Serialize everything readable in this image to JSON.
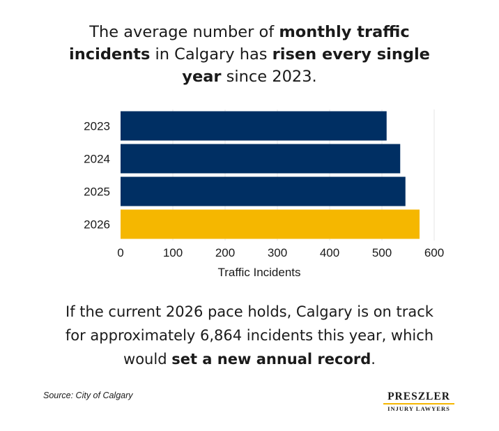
{
  "headline": {
    "p1": "The average number of ",
    "b1": "monthly traffic incidents",
    "p2": " in Calgary has ",
    "b2": "risen every single year",
    "p3": " since 2023."
  },
  "chart_data": {
    "type": "bar",
    "orientation": "horizontal",
    "categories": [
      "2023",
      "2024",
      "2025",
      "2026"
    ],
    "values": [
      509,
      535,
      545,
      572
    ],
    "xlabel": "Traffic Incidents",
    "ylabel": "",
    "xlim": [
      0,
      600
    ],
    "xticks": [
      0,
      100,
      200,
      300,
      400,
      500,
      600
    ],
    "grid": true,
    "colors": [
      "#002f63",
      "#002f63",
      "#002f63",
      "#f5b700"
    ]
  },
  "footer": {
    "p1": "If the current 2026 pace holds, Calgary is on track for approximately 6,864 incidents this year, which would ",
    "b1": "set a new annual record",
    "p2": "."
  },
  "source": "Source: City of Calgary",
  "logo": {
    "name": "PRESZLER",
    "sub": "INJURY LAWYERS",
    "accent": "#f5b700"
  }
}
